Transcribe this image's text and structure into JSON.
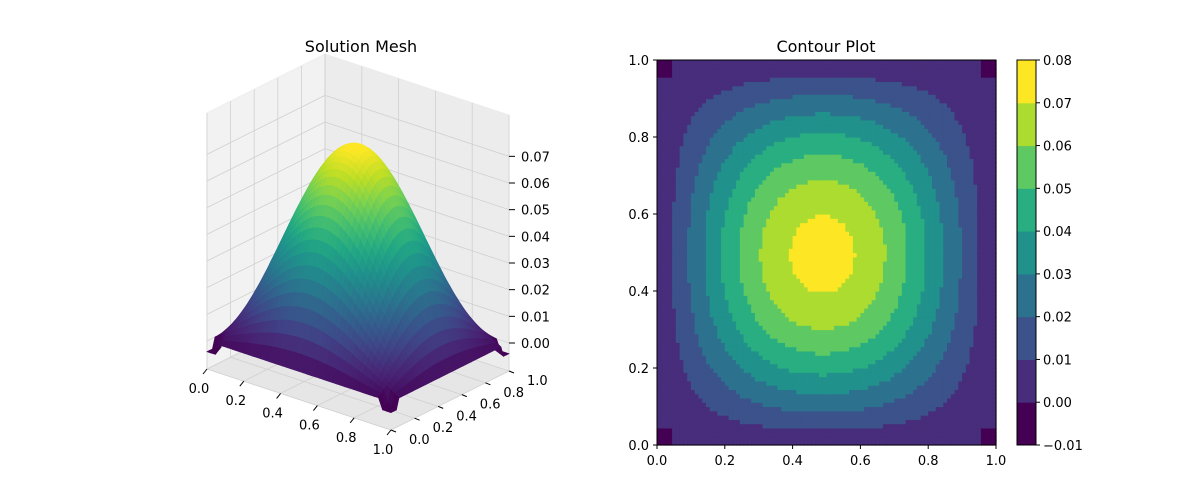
{
  "figure": {
    "background": "#ffffff"
  },
  "chart_data": [
    {
      "type": "surface",
      "title": "Solution Mesh",
      "colormap": "viridis",
      "x_ticks": [
        "0.0",
        "0.2",
        "0.4",
        "0.6",
        "0.8",
        "1.0"
      ],
      "y_ticks": [
        "0.0",
        "0.2",
        "0.4",
        "0.6",
        "0.8",
        "1.0"
      ],
      "z_ticks": [
        "0.00",
        "0.01",
        "0.02",
        "0.03",
        "0.04",
        "0.05",
        "0.06",
        "0.07"
      ],
      "xlim": [
        0,
        1
      ],
      "ylim": [
        0,
        1
      ],
      "zlim": [
        0,
        0.075
      ],
      "peak": {
        "x": 0.45,
        "y": 0.47,
        "z": 0.073
      },
      "grid": true
    },
    {
      "type": "contour",
      "title": "Contour Plot",
      "colormap": "viridis",
      "xlim": [
        0,
        1
      ],
      "ylim": [
        0,
        1
      ],
      "x_ticks": [
        "0.0",
        "0.2",
        "0.4",
        "0.6",
        "0.8",
        "1.0"
      ],
      "y_ticks": [
        "0.0",
        "0.2",
        "0.4",
        "0.6",
        "0.8",
        "1.0"
      ],
      "levels": [
        -0.01,
        0.0,
        0.01,
        0.02,
        0.03,
        0.04,
        0.05,
        0.06,
        0.07,
        0.08
      ],
      "colorbar_ticks": [
        "−0.01",
        "0.00",
        "0.01",
        "0.02",
        "0.03",
        "0.04",
        "0.05",
        "0.06",
        "0.07",
        "0.08"
      ],
      "level_colors": [
        "#440154",
        "#472d7b",
        "#3b528b",
        "#2c728e",
        "#21918c",
        "#28ae80",
        "#5ec962",
        "#addc30",
        "#fde725"
      ],
      "peak": {
        "x": 0.45,
        "y": 0.47,
        "z": 0.073
      }
    }
  ]
}
